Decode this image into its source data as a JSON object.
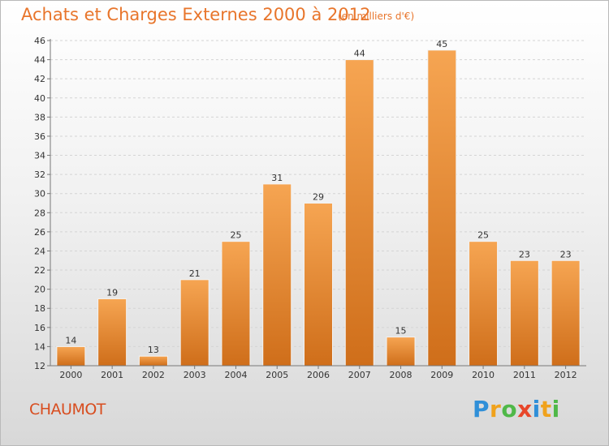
{
  "title": "Achats et Charges Externes 2000 à 2012",
  "subtitle": "(en milliers d'€)",
  "commune": "CHAUMOT",
  "logo": "Proxiti",
  "colors": {
    "bar_top": "#f6a552",
    "bar_bottom": "#cf6e1a",
    "title": "#e8752b"
  },
  "chart_data": {
    "type": "bar",
    "title": "Achats et Charges Externes 2000 à 2012",
    "subtitle": "(en milliers d'€)",
    "categories": [
      "2000",
      "2001",
      "2002",
      "2003",
      "2004",
      "2005",
      "2006",
      "2007",
      "2008",
      "2009",
      "2010",
      "2011",
      "2012"
    ],
    "values": [
      14,
      19,
      13,
      21,
      25,
      31,
      29,
      44,
      15,
      45,
      25,
      23,
      23
    ],
    "ylim": [
      12,
      46
    ],
    "yticks": [
      12,
      14,
      16,
      18,
      20,
      22,
      24,
      26,
      28,
      30,
      32,
      34,
      36,
      38,
      40,
      42,
      44,
      46
    ],
    "grid": true,
    "legend": "none"
  }
}
